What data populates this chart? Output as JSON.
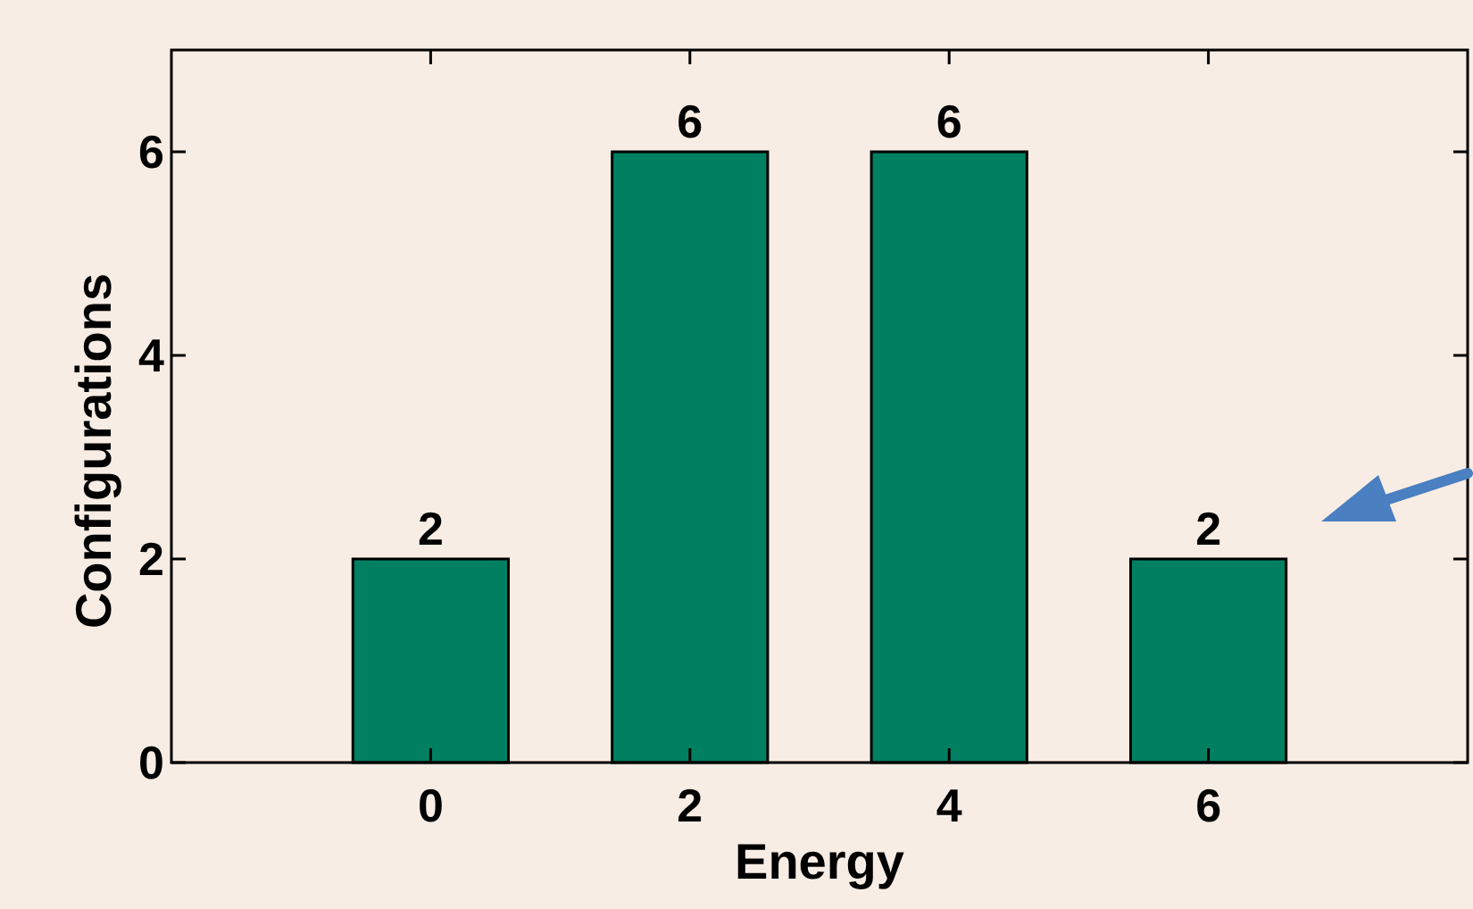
{
  "chart_data": {
    "type": "bar",
    "xlabel": "Energy",
    "ylabel": "Configurations",
    "x": [
      0,
      2,
      4,
      6
    ],
    "values": [
      2,
      6,
      6,
      2
    ],
    "color": "#008060",
    "xlim": [
      -2,
      8
    ],
    "xticks": [
      0,
      2,
      4,
      6
    ],
    "ylim": [
      0,
      7
    ],
    "yticks": [
      0,
      2,
      4,
      6
    ],
    "data_labels": true,
    "grid": false
  }
}
